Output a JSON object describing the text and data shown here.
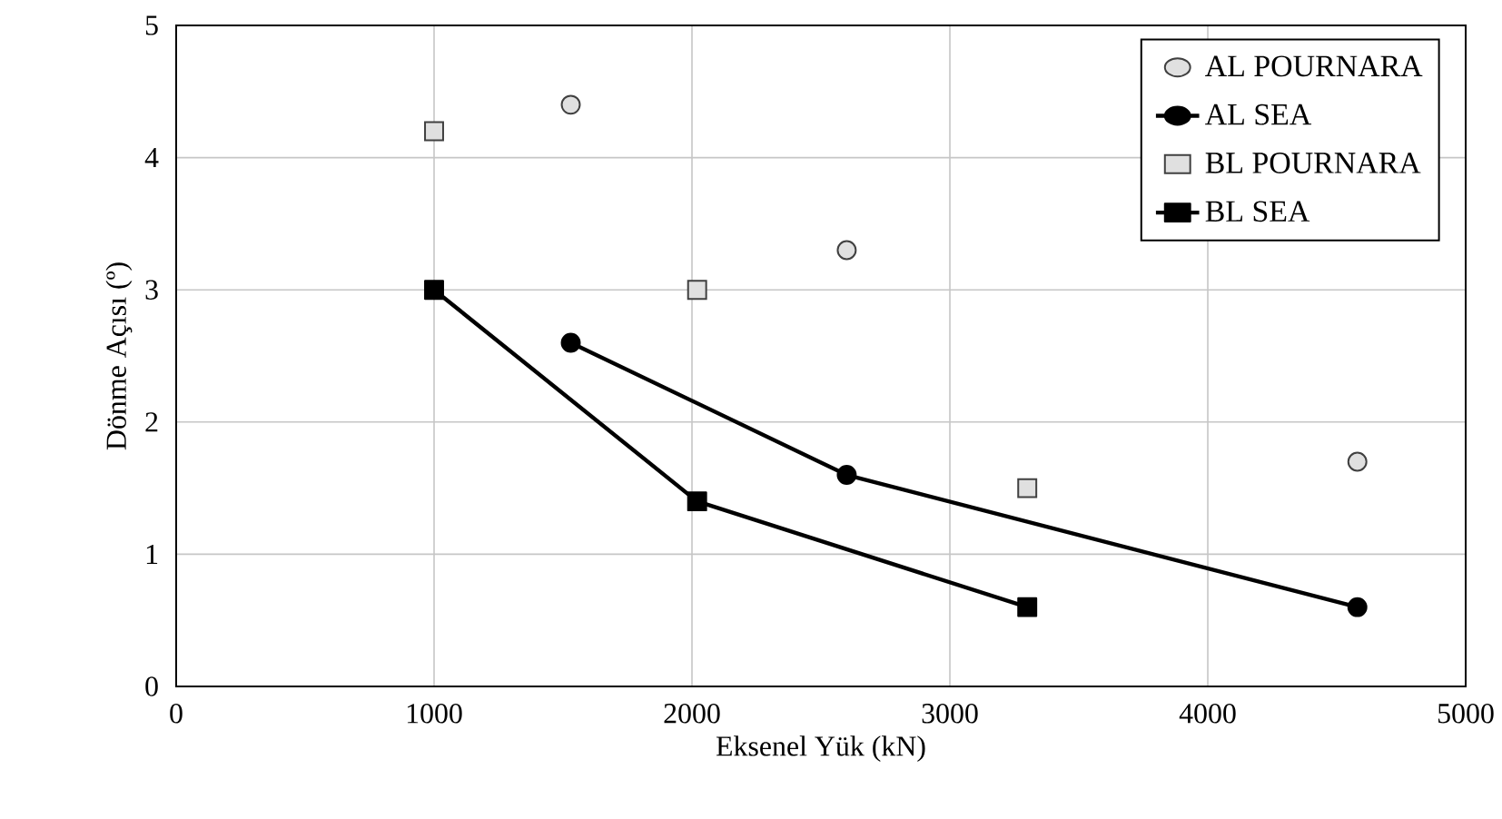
{
  "chart_data": {
    "type": "line",
    "xlabel": "Eksenel Yük (kN)",
    "ylabel": "Dönme Açısı (º)",
    "xlim": [
      0,
      5000
    ],
    "xticks": [
      0,
      1000,
      2000,
      3000,
      4000,
      5000
    ],
    "ylim": [
      0,
      5
    ],
    "yticks": [
      0,
      1,
      2,
      3,
      4,
      5
    ],
    "grid": true,
    "legend": "top right",
    "series": [
      {
        "name": "AL POURNARA",
        "type": "scatter",
        "marker": "circle",
        "color": "#e0e0e0",
        "x": [
          1530,
          2600,
          4580
        ],
        "values": [
          4.4,
          3.3,
          1.7
        ]
      },
      {
        "name": "AL SEA",
        "marker": "circle",
        "color": "#000000",
        "x": [
          1530,
          2600,
          4580
        ],
        "values": [
          2.6,
          1.6,
          0.6
        ]
      },
      {
        "name": "BL POURNARA",
        "type": "scatter",
        "marker": "square",
        "color": "#e0e0e0",
        "x": [
          1000,
          2020,
          3300
        ],
        "values": [
          4.2,
          3.0,
          1.5
        ]
      },
      {
        "name": "BL SEA",
        "marker": "square",
        "color": "#000000",
        "x": [
          1000,
          2020,
          3300
        ],
        "values": [
          3.0,
          1.4,
          0.6
        ]
      }
    ]
  }
}
